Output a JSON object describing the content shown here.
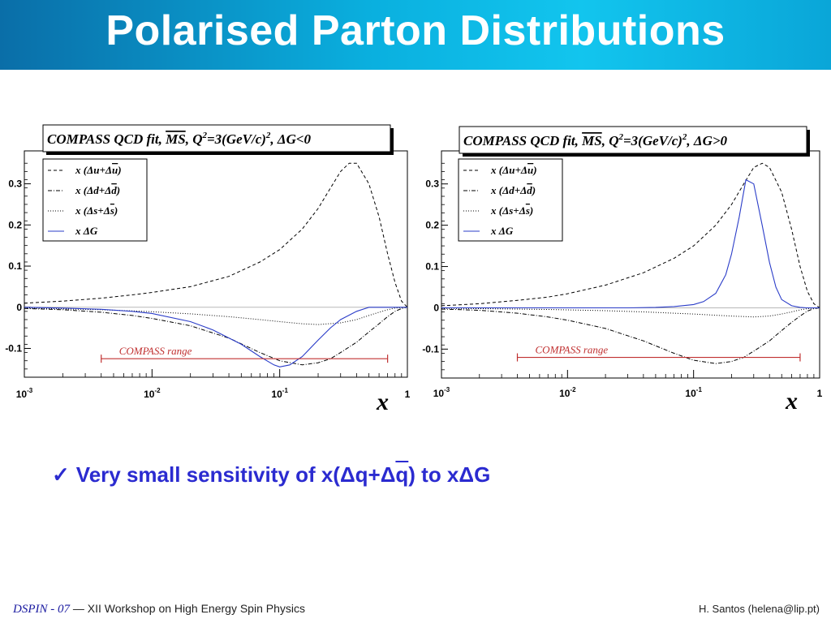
{
  "header": {
    "title": "Polarised Parton Distributions"
  },
  "chart_data": [
    {
      "type": "line",
      "title": "COMPASS QCD fit, MS, Q²=3(GeV/c)², ΔG<0",
      "title_parts": {
        "pre": "COMPASS QCD fit, ",
        "ms": "MS",
        "mid": ", Q",
        "sup1": "2",
        "mid2": "=3(GeV/c)",
        "sup2": "2",
        "post": ", ΔG<0"
      },
      "xlabel": "x",
      "x_scale": "log",
      "xlim": [
        0.001,
        1
      ],
      "ylim": [
        -0.17,
        0.38
      ],
      "x_ticks": [
        {
          "value": 0.001,
          "base": "10",
          "exp": "-3"
        },
        {
          "value": 0.01,
          "base": "10",
          "exp": "-2"
        },
        {
          "value": 0.1,
          "base": "10",
          "exp": "-1"
        },
        {
          "value": 1,
          "base": "1",
          "exp": ""
        }
      ],
      "y_ticks": [
        {
          "value": -0.1,
          "label": "-0.1"
        },
        {
          "value": 0,
          "label": "0"
        },
        {
          "value": 0.1,
          "label": "0.1"
        },
        {
          "value": 0.2,
          "label": "0.2"
        },
        {
          "value": 0.3,
          "label": "0.3"
        }
      ],
      "legend_position": "top-left",
      "legend": [
        {
          "pre": "x (Δu+Δ",
          "bar": "u",
          "post": ")",
          "style": "dashed",
          "color": "#000000"
        },
        {
          "pre": "x (Δd+Δ",
          "bar": "d",
          "post": ")",
          "style": "dashdot",
          "color": "#000000"
        },
        {
          "pre": "x (Δs+Δ",
          "bar": "s",
          "post": ")",
          "style": "dotted",
          "color": "#000000"
        },
        {
          "pre": "x ΔG",
          "bar": "",
          "post": "",
          "style": "solid",
          "color": "#2a3cc8"
        }
      ],
      "annotation": {
        "text": "COMPASS range",
        "x_from": 0.004,
        "x_to": 0.7,
        "y": -0.125,
        "color": "#c03030"
      },
      "series": [
        {
          "name": "x (Δu+Δū)",
          "style": "dashed",
          "color": "#000000",
          "x": [
            0.001,
            0.002,
            0.004,
            0.007,
            0.01,
            0.02,
            0.04,
            0.07,
            0.1,
            0.15,
            0.2,
            0.25,
            0.3,
            0.35,
            0.4,
            0.5,
            0.6,
            0.7,
            0.8,
            0.9,
            1
          ],
          "y": [
            0.01,
            0.015,
            0.022,
            0.03,
            0.036,
            0.05,
            0.075,
            0.11,
            0.14,
            0.19,
            0.24,
            0.29,
            0.33,
            0.35,
            0.35,
            0.3,
            0.22,
            0.13,
            0.06,
            0.015,
            0
          ]
        },
        {
          "name": "x (Δd+Δd̄)",
          "style": "dashdot",
          "color": "#000000",
          "x": [
            0.001,
            0.002,
            0.004,
            0.007,
            0.01,
            0.02,
            0.04,
            0.07,
            0.1,
            0.15,
            0.2,
            0.25,
            0.3,
            0.4,
            0.5,
            0.6,
            0.7,
            0.8,
            0.9,
            1
          ],
          "y": [
            -0.003,
            -0.006,
            -0.012,
            -0.02,
            -0.027,
            -0.045,
            -0.075,
            -0.11,
            -0.13,
            -0.14,
            -0.135,
            -0.125,
            -0.11,
            -0.085,
            -0.06,
            -0.04,
            -0.023,
            -0.01,
            -0.003,
            0
          ]
        },
        {
          "name": "x (Δs+Δs̄)",
          "style": "dotted",
          "color": "#000000",
          "x": [
            0.001,
            0.002,
            0.004,
            0.007,
            0.01,
            0.02,
            0.04,
            0.07,
            0.1,
            0.15,
            0.2,
            0.3,
            0.4,
            0.5,
            0.6,
            0.7,
            0.8,
            0.9,
            1
          ],
          "y": [
            -0.002,
            -0.004,
            -0.006,
            -0.009,
            -0.011,
            -0.016,
            -0.023,
            -0.03,
            -0.035,
            -0.04,
            -0.042,
            -0.038,
            -0.03,
            -0.02,
            -0.012,
            -0.006,
            -0.002,
            -0.001,
            0
          ]
        },
        {
          "name": "x ΔG",
          "style": "solid",
          "color": "#2a3cc8",
          "x": [
            0.001,
            0.002,
            0.004,
            0.007,
            0.01,
            0.02,
            0.03,
            0.05,
            0.07,
            0.09,
            0.1,
            0.12,
            0.15,
            0.2,
            0.25,
            0.3,
            0.4,
            0.5,
            0.6,
            0.7,
            0.8,
            1
          ],
          "y": [
            0,
            -0.002,
            -0.005,
            -0.01,
            -0.015,
            -0.035,
            -0.055,
            -0.09,
            -0.12,
            -0.14,
            -0.145,
            -0.14,
            -0.12,
            -0.08,
            -0.05,
            -0.03,
            -0.01,
            0,
            0,
            0,
            0,
            0
          ]
        }
      ]
    },
    {
      "type": "line",
      "title": "COMPASS QCD fit, MS, Q²=3(GeV/c)², ΔG>0",
      "title_parts": {
        "pre": "COMPASS QCD fit, ",
        "ms": "MS",
        "mid": ", Q",
        "sup1": "2",
        "mid2": "=3(GeV/c)",
        "sup2": "2",
        "post": ", ΔG>0"
      },
      "xlabel": "x",
      "x_scale": "log",
      "xlim": [
        0.001,
        1
      ],
      "ylim": [
        -0.17,
        0.38
      ],
      "x_ticks": [
        {
          "value": 0.001,
          "base": "10",
          "exp": "-3"
        },
        {
          "value": 0.01,
          "base": "10",
          "exp": "-2"
        },
        {
          "value": 0.1,
          "base": "10",
          "exp": "-1"
        },
        {
          "value": 1,
          "base": "1",
          "exp": ""
        }
      ],
      "y_ticks": [
        {
          "value": -0.1,
          "label": "-0.1"
        },
        {
          "value": 0,
          "label": "0"
        },
        {
          "value": 0.1,
          "label": "0.1"
        },
        {
          "value": 0.2,
          "label": "0.2"
        },
        {
          "value": 0.3,
          "label": "0.3"
        }
      ],
      "legend_position": "top-left",
      "legend": [
        {
          "pre": "x (Δu+Δ",
          "bar": "u",
          "post": ")",
          "style": "dashed",
          "color": "#000000"
        },
        {
          "pre": "x (Δd+Δ",
          "bar": "d",
          "post": ")",
          "style": "dashdot",
          "color": "#000000"
        },
        {
          "pre": "x (Δs+Δ",
          "bar": "s",
          "post": ")",
          "style": "dotted",
          "color": "#000000"
        },
        {
          "pre": "x ΔG",
          "bar": "",
          "post": "",
          "style": "solid",
          "color": "#2a3cc8"
        }
      ],
      "annotation": {
        "text": "COMPASS range",
        "x_from": 0.004,
        "x_to": 0.7,
        "y": -0.12,
        "color": "#c03030"
      },
      "series": [
        {
          "name": "x (Δu+Δū)",
          "style": "dashed",
          "color": "#000000",
          "x": [
            0.001,
            0.002,
            0.004,
            0.007,
            0.01,
            0.02,
            0.04,
            0.07,
            0.1,
            0.15,
            0.2,
            0.25,
            0.3,
            0.35,
            0.4,
            0.5,
            0.6,
            0.7,
            0.8,
            0.9,
            1
          ],
          "y": [
            0.005,
            0.01,
            0.018,
            0.026,
            0.034,
            0.055,
            0.085,
            0.12,
            0.15,
            0.2,
            0.25,
            0.3,
            0.34,
            0.35,
            0.34,
            0.28,
            0.19,
            0.1,
            0.04,
            0.01,
            0
          ]
        },
        {
          "name": "x (Δd+Δd̄)",
          "style": "dashdot",
          "color": "#000000",
          "x": [
            0.001,
            0.002,
            0.004,
            0.007,
            0.01,
            0.02,
            0.04,
            0.07,
            0.1,
            0.15,
            0.2,
            0.25,
            0.3,
            0.4,
            0.5,
            0.6,
            0.7,
            0.8,
            0.9,
            1
          ],
          "y": [
            -0.003,
            -0.006,
            -0.013,
            -0.022,
            -0.03,
            -0.05,
            -0.08,
            -0.11,
            -0.127,
            -0.135,
            -0.13,
            -0.12,
            -0.105,
            -0.08,
            -0.055,
            -0.035,
            -0.02,
            -0.008,
            -0.002,
            0
          ]
        },
        {
          "name": "x (Δs+Δs̄)",
          "style": "dotted",
          "color": "#000000",
          "x": [
            0.001,
            0.002,
            0.004,
            0.007,
            0.01,
            0.02,
            0.04,
            0.07,
            0.1,
            0.15,
            0.2,
            0.3,
            0.4,
            0.5,
            0.6,
            0.7,
            0.8,
            0.9,
            1
          ],
          "y": [
            -0.001,
            -0.002,
            -0.003,
            -0.004,
            -0.005,
            -0.007,
            -0.01,
            -0.013,
            -0.015,
            -0.018,
            -0.02,
            -0.022,
            -0.02,
            -0.015,
            -0.01,
            -0.005,
            -0.002,
            -0.001,
            0
          ]
        },
        {
          "name": "x ΔG",
          "style": "solid",
          "color": "#2a3cc8",
          "x": [
            0.001,
            0.01,
            0.03,
            0.05,
            0.07,
            0.1,
            0.12,
            0.15,
            0.18,
            0.2,
            0.23,
            0.26,
            0.3,
            0.35,
            0.4,
            0.45,
            0.5,
            0.6,
            0.7,
            0.8,
            1
          ],
          "y": [
            0,
            0,
            0,
            0.001,
            0.003,
            0.008,
            0.015,
            0.035,
            0.08,
            0.13,
            0.22,
            0.31,
            0.3,
            0.2,
            0.11,
            0.05,
            0.02,
            0.005,
            0.001,
            0,
            0
          ]
        }
      ]
    }
  ],
  "bullet": {
    "check": "✓",
    "pre": "Very small sensitivity of x(Δq+Δ",
    "bar": "q",
    "post": ") to xΔG"
  },
  "footer": {
    "conference": "DSPIN - 07",
    "dash": "—",
    "workshop": "XII Workshop on High Energy Spin Physics",
    "author": "H. Santos  (helena@lip.pt)"
  }
}
